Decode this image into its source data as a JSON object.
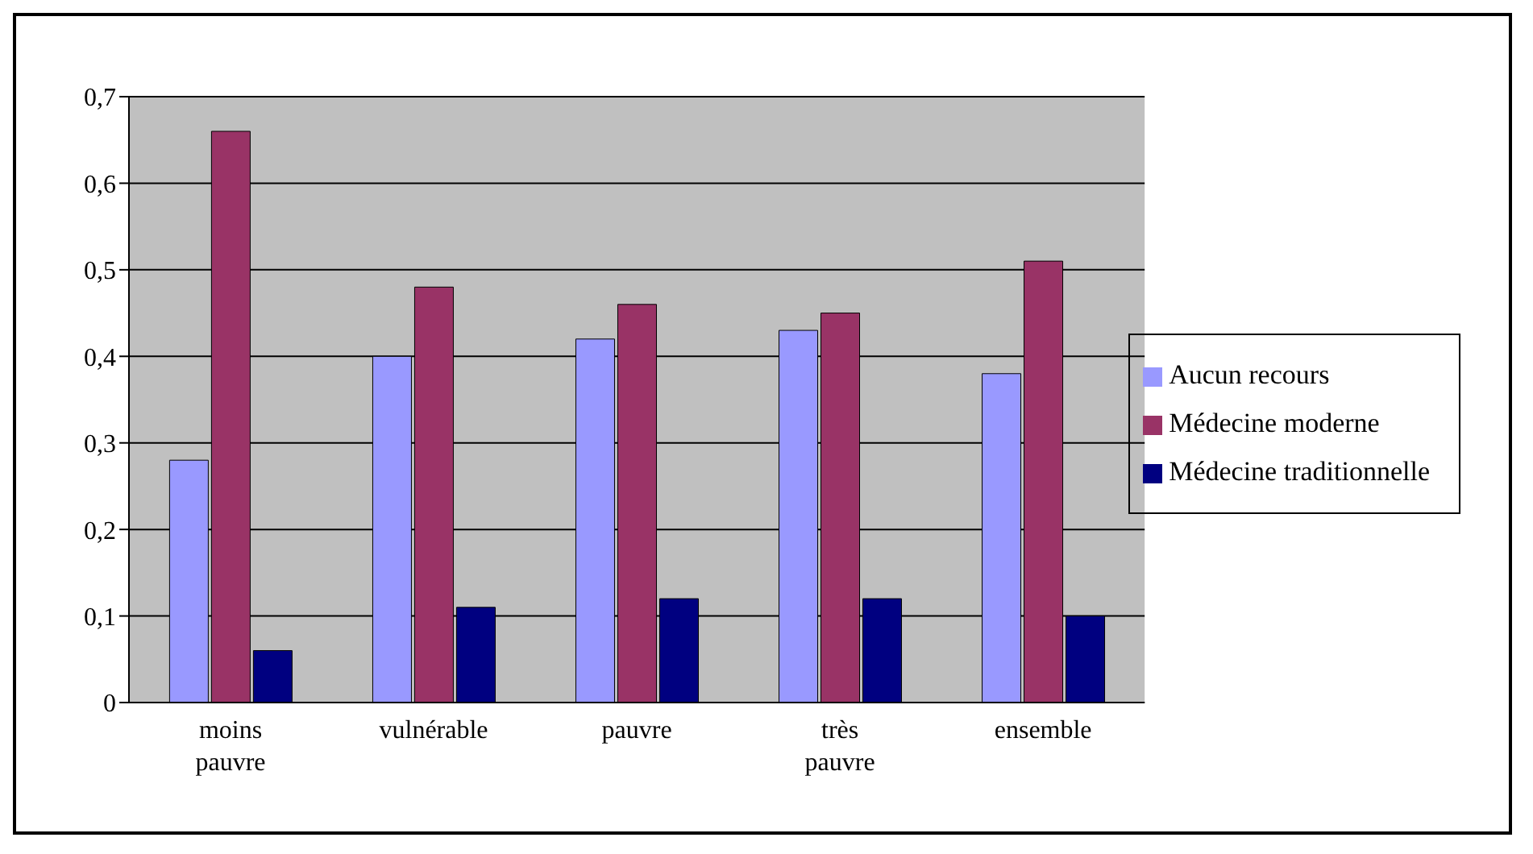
{
  "chart_data": {
    "type": "bar",
    "categories": [
      "moins pauvre",
      "vulnérable",
      "pauvre",
      "très pauvre",
      "ensemble"
    ],
    "series": [
      {
        "name": "Aucun recours",
        "color": "#9999ff",
        "values": [
          0.28,
          0.4,
          0.42,
          0.43,
          0.38
        ]
      },
      {
        "name": "Médecine  moderne",
        "color": "#993366",
        "values": [
          0.66,
          0.48,
          0.46,
          0.45,
          0.51
        ]
      },
      {
        "name": "Médecine traditionnelle",
        "color": "#000080",
        "values": [
          0.06,
          0.11,
          0.12,
          0.12,
          0.1
        ]
      }
    ],
    "ylim": [
      0,
      0.7
    ],
    "yticks": [
      0,
      {
        "value": 0.1,
        "label": "0,1"
      },
      {
        "value": 0.2,
        "label": "0,2"
      },
      {
        "value": 0.3,
        "label": "0,3"
      },
      {
        "value": 0.4,
        "label": "0,4"
      },
      {
        "value": 0.5,
        "label": "0,5"
      },
      {
        "value": 0.6,
        "label": "0,6"
      },
      {
        "value": 0.7,
        "label": "0,7"
      }
    ],
    "grid": "y",
    "legend": "right"
  }
}
